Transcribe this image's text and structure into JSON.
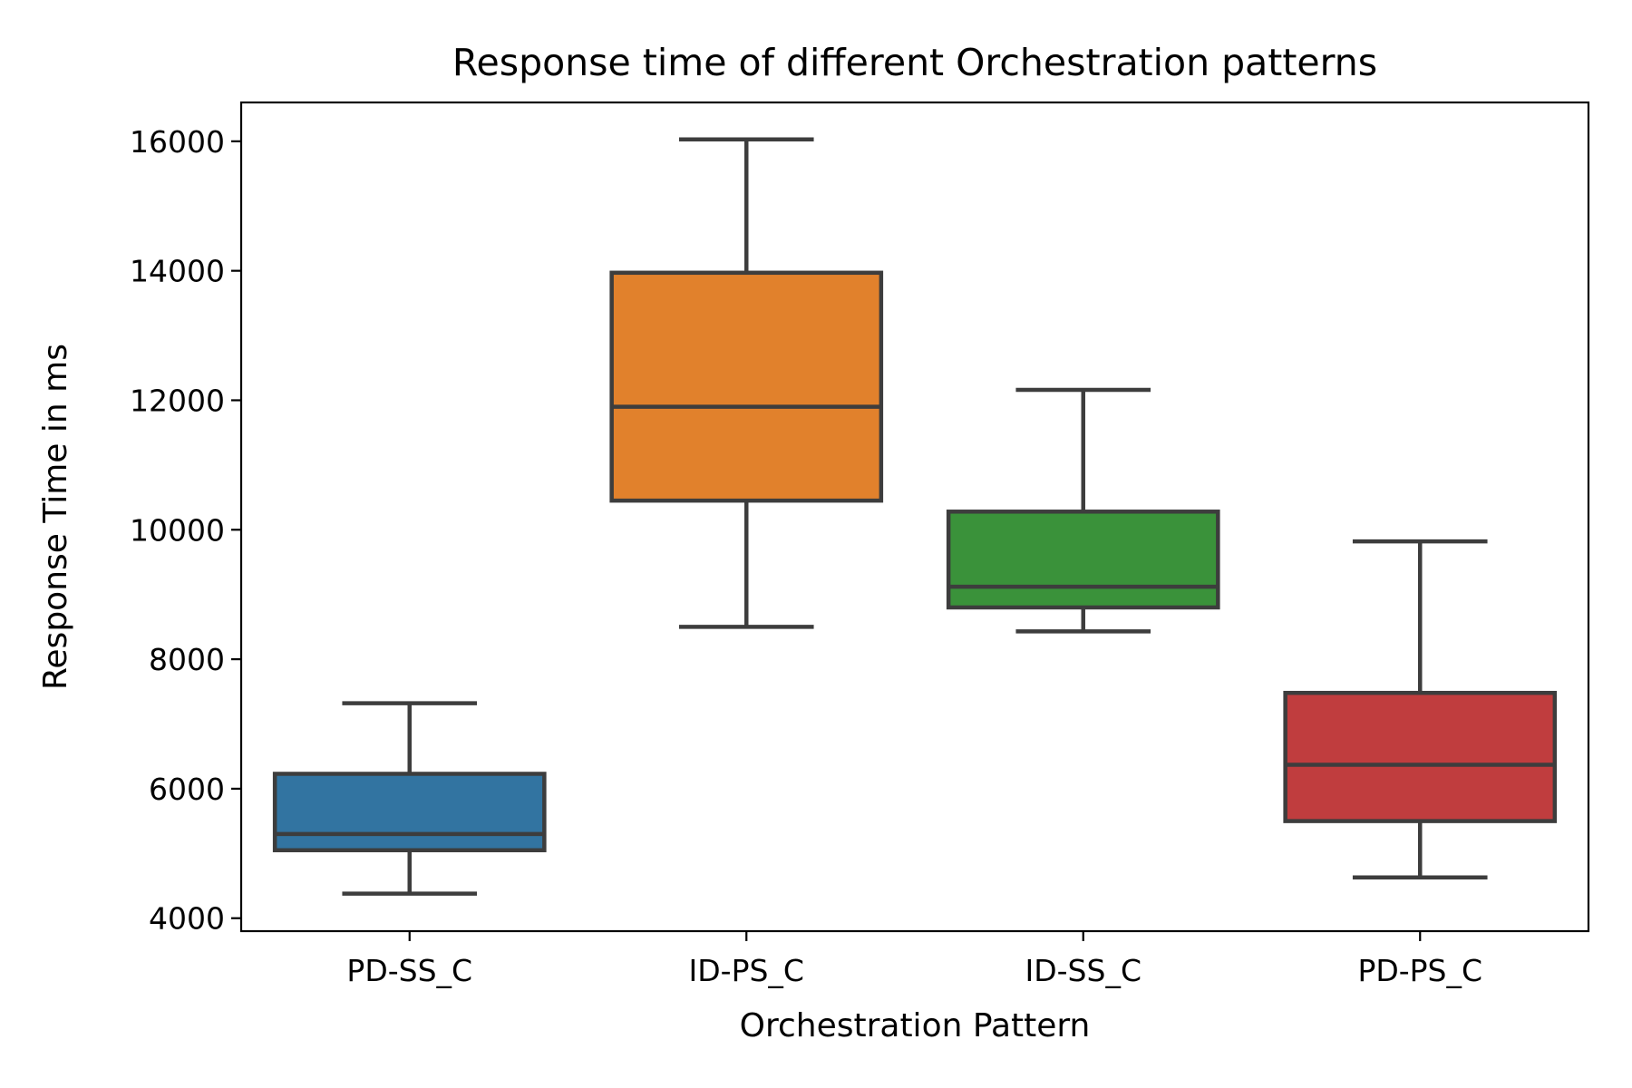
{
  "chart_data": {
    "type": "boxplot",
    "title": "Response time of different Orchestration patterns",
    "xlabel": "Orchestration Pattern",
    "ylabel": "Response Time in ms",
    "ylim": [
      3800,
      16600
    ],
    "yticks": [
      4000,
      6000,
      8000,
      10000,
      12000,
      14000,
      16000
    ],
    "yticks_labels": [
      "4000",
      "6000",
      "8000",
      "10000",
      "12000",
      "14000",
      "16000"
    ],
    "grid": false,
    "legend": "none",
    "categories": [
      "PD-SS_C",
      "ID-PS_C",
      "ID-SS_C",
      "PD-PS_C"
    ],
    "series": [
      {
        "category": "PD-SS_C",
        "whisker_low": 4380,
        "q1": 5050,
        "median": 5300,
        "q3": 6230,
        "whisker_high": 7320,
        "color": "#3274a1"
      },
      {
        "category": "ID-PS_C",
        "whisker_low": 8500,
        "q1": 10450,
        "median": 11900,
        "q3": 13970,
        "whisker_high": 16030,
        "color": "#e1812c"
      },
      {
        "category": "ID-SS_C",
        "whisker_low": 8430,
        "q1": 8800,
        "median": 9120,
        "q3": 10280,
        "whisker_high": 12160,
        "color": "#3a923a"
      },
      {
        "category": "PD-PS_C",
        "whisker_low": 4630,
        "q1": 5500,
        "median": 6370,
        "q3": 7480,
        "whisker_high": 9820,
        "color": "#c03d3e"
      }
    ],
    "edge_color": "#3d3d3d"
  }
}
